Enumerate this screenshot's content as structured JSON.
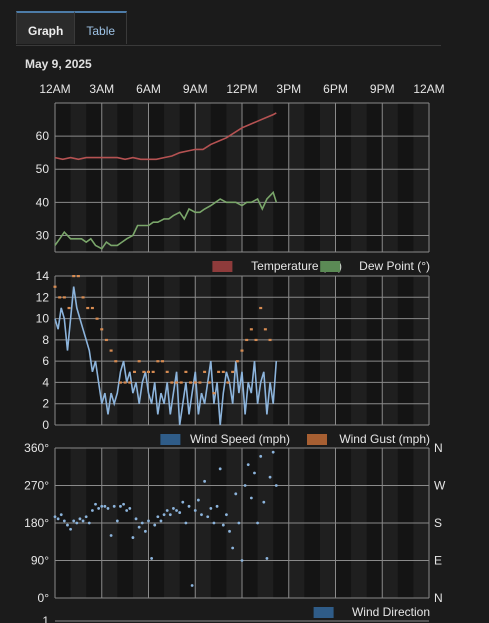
{
  "tabs": [
    {
      "label": "Graph",
      "active": true
    },
    {
      "label": "Table",
      "active": false
    }
  ],
  "date": "May 9, 2025",
  "colors": {
    "temperature": "#b55252",
    "dew_point": "#7aa66a",
    "wind_speed": "#8cb4dc",
    "wind_gust": "#d88c52",
    "wind_direction": "#8cb4dc",
    "legend_temperature": "#8e3b3b",
    "legend_dew_point": "#5b8a55",
    "legend_wind_speed": "#2f5c88",
    "legend_wind_gust": "#a75f32",
    "legend_wind_direction": "#2f5c88"
  },
  "chart_data": [
    {
      "type": "line",
      "x_ticks": [
        "12AM",
        "3AM",
        "6AM",
        "9AM",
        "12PM",
        "3PM",
        "6PM",
        "9PM",
        "12AM"
      ],
      "ylim": [
        25,
        70
      ],
      "y_ticks": [
        "30",
        "40",
        "50",
        "60"
      ],
      "series": [
        {
          "name": "Temperature (°F)",
          "x": [
            0,
            0.5,
            1,
            1.5,
            2,
            2.5,
            3,
            3.5,
            4,
            4.5,
            5,
            5.5,
            6,
            6.5,
            7,
            7.5,
            8,
            8.5,
            9,
            9.5,
            10,
            10.5,
            11,
            11.5,
            12,
            12.5,
            13,
            13.5,
            14,
            14.2
          ],
          "y": [
            53.5,
            53,
            53.5,
            53,
            53.5,
            53.5,
            53.5,
            53.5,
            53.5,
            53,
            53.5,
            53,
            53,
            53,
            53.5,
            54,
            55,
            55.5,
            56,
            56,
            57.5,
            58.5,
            59.5,
            61,
            62.5,
            63.5,
            64.5,
            65.5,
            66.5,
            67
          ]
        },
        {
          "name": "Dew Point (°)",
          "x": [
            0,
            0.3,
            0.6,
            1,
            1.3,
            1.7,
            2,
            2.3,
            2.6,
            3,
            3.3,
            3.6,
            4,
            4.3,
            4.6,
            5,
            5.3,
            5.6,
            6,
            6.3,
            6.6,
            7,
            7.3,
            7.6,
            8,
            8.3,
            8.6,
            9,
            9.3,
            9.6,
            10,
            10.3,
            10.6,
            11,
            11.3,
            11.6,
            12,
            12.3,
            12.6,
            13,
            13.3,
            13.6,
            14,
            14.2
          ],
          "y": [
            27,
            29,
            31,
            29,
            29,
            29,
            28,
            29,
            27,
            26,
            28,
            27,
            27,
            28,
            29,
            30,
            33,
            33,
            33,
            34,
            34,
            35,
            35,
            36,
            37,
            35,
            38,
            37,
            37,
            38,
            39,
            40,
            41,
            40,
            40,
            40,
            39,
            40,
            40,
            41,
            38,
            41,
            43,
            40
          ]
        }
      ],
      "legend": "bottom-right",
      "grid": true
    },
    {
      "type": "line",
      "ylim": [
        0,
        14
      ],
      "y_ticks": [
        "0",
        "2",
        "4",
        "6",
        "8",
        "10",
        "12",
        "14"
      ],
      "series": [
        {
          "name": "Wind Speed (mph)",
          "x": [
            0,
            0.2,
            0.4,
            0.6,
            0.8,
            1,
            1.2,
            1.4,
            1.6,
            1.8,
            2,
            2.2,
            2.4,
            2.6,
            2.8,
            3,
            3.2,
            3.4,
            3.6,
            3.8,
            4,
            4.2,
            4.4,
            4.6,
            4.8,
            5,
            5.2,
            5.4,
            5.6,
            5.8,
            6,
            6.2,
            6.4,
            6.6,
            6.8,
            7,
            7.2,
            7.4,
            7.6,
            7.8,
            8,
            8.2,
            8.4,
            8.6,
            8.8,
            9,
            9.2,
            9.4,
            9.6,
            9.8,
            10,
            10.2,
            10.4,
            10.6,
            10.8,
            11,
            11.2,
            11.4,
            11.6,
            11.8,
            12,
            12.2,
            12.4,
            12.6,
            12.8,
            13,
            13.2,
            13.4,
            13.6,
            13.8,
            14,
            14.2
          ],
          "y": [
            10,
            9,
            11,
            10,
            7,
            10,
            13,
            11,
            10,
            9,
            8,
            7,
            5,
            6,
            4,
            2,
            3,
            1,
            3,
            2,
            3,
            5,
            6,
            4,
            5,
            3,
            4,
            2,
            4,
            5,
            3,
            2,
            4,
            1,
            3,
            2,
            4,
            1,
            3,
            5,
            0,
            2,
            4,
            1,
            3,
            5,
            1,
            3,
            2,
            4,
            6,
            2,
            4,
            0,
            3,
            5,
            4,
            2,
            6,
            3,
            5,
            1,
            4,
            3,
            6,
            2,
            4,
            5,
            1,
            4,
            2,
            6
          ]
        },
        {
          "name": "Wind Gust (mph)",
          "x": [
            0,
            0.3,
            0.6,
            0.9,
            1.2,
            1.5,
            1.8,
            2.1,
            2.4,
            2.7,
            3,
            3.3,
            3.6,
            3.9,
            4.2,
            4.5,
            4.8,
            5.1,
            5.4,
            5.7,
            6,
            6.3,
            6.6,
            6.9,
            7.2,
            7.5,
            7.8,
            8.1,
            8.4,
            8.7,
            9,
            9.3,
            9.6,
            9.9,
            10.2,
            10.5,
            10.8,
            11.1,
            11.4,
            11.7,
            12,
            12.3,
            12.6,
            12.9,
            13.2,
            13.5,
            13.8
          ],
          "y": [
            13,
            12,
            12,
            11,
            14,
            14,
            12,
            11,
            11,
            10,
            9,
            8,
            7,
            6,
            4,
            4,
            4,
            5,
            6,
            5,
            5,
            5,
            6,
            6,
            5,
            4,
            4,
            4,
            5,
            4,
            4,
            4,
            5,
            4,
            3,
            5,
            5,
            4,
            5,
            6,
            7,
            8,
            9,
            8,
            11,
            9,
            8
          ]
        }
      ],
      "legend": "bottom-right",
      "grid": true
    },
    {
      "type": "scatter",
      "ylim": [
        0,
        360
      ],
      "y_ticks": [
        "0°",
        "90°",
        "180°",
        "270°",
        "360°"
      ],
      "y_ticks_right": [
        "N",
        "E",
        "S",
        "W",
        "N"
      ],
      "series": [
        {
          "name": "Wind Direction",
          "x": [
            0,
            0.2,
            0.4,
            0.6,
            0.8,
            1,
            1.2,
            1.4,
            1.6,
            1.8,
            2,
            2.2,
            2.4,
            2.6,
            2.8,
            3,
            3.2,
            3.4,
            3.6,
            3.8,
            4,
            4.2,
            4.4,
            4.6,
            4.8,
            5,
            5.2,
            5.4,
            5.6,
            5.8,
            6,
            6.2,
            6.4,
            6.6,
            6.8,
            7,
            7.2,
            7.4,
            7.6,
            7.8,
            8,
            8.2,
            8.4,
            8.6,
            8.8,
            9,
            9.2,
            9.4,
            9.6,
            9.8,
            10,
            10.2,
            10.4,
            10.6,
            10.8,
            11,
            11.2,
            11.4,
            11.6,
            11.8,
            12,
            12.2,
            12.4,
            12.6,
            12.8,
            13,
            13.2,
            13.4,
            13.6,
            13.8,
            14,
            14.2
          ],
          "y": [
            195,
            190,
            200,
            185,
            175,
            165,
            185,
            180,
            190,
            185,
            195,
            180,
            210,
            225,
            215,
            220,
            220,
            215,
            150,
            220,
            185,
            220,
            225,
            210,
            215,
            145,
            190,
            170,
            180,
            160,
            185,
            95,
            175,
            195,
            185,
            200,
            210,
            200,
            215,
            210,
            205,
            230,
            180,
            220,
            30,
            210,
            235,
            200,
            280,
            195,
            215,
            180,
            220,
            310,
            175,
            200,
            160,
            120,
            250,
            180,
            90,
            270,
            320,
            240,
            300,
            180,
            340,
            230,
            95,
            290,
            350,
            270
          ]
        }
      ],
      "legend": "bottom-right",
      "grid": true
    }
  ],
  "legend_labels": {
    "temperature": "Temperature (°F)",
    "dew_point": "Dew Point (°)",
    "wind_speed": "Wind Speed (mph)",
    "wind_gust": "Wind Gust (mph)",
    "wind_direction": "Wind Direction"
  },
  "fourth_axis_tick": "1"
}
